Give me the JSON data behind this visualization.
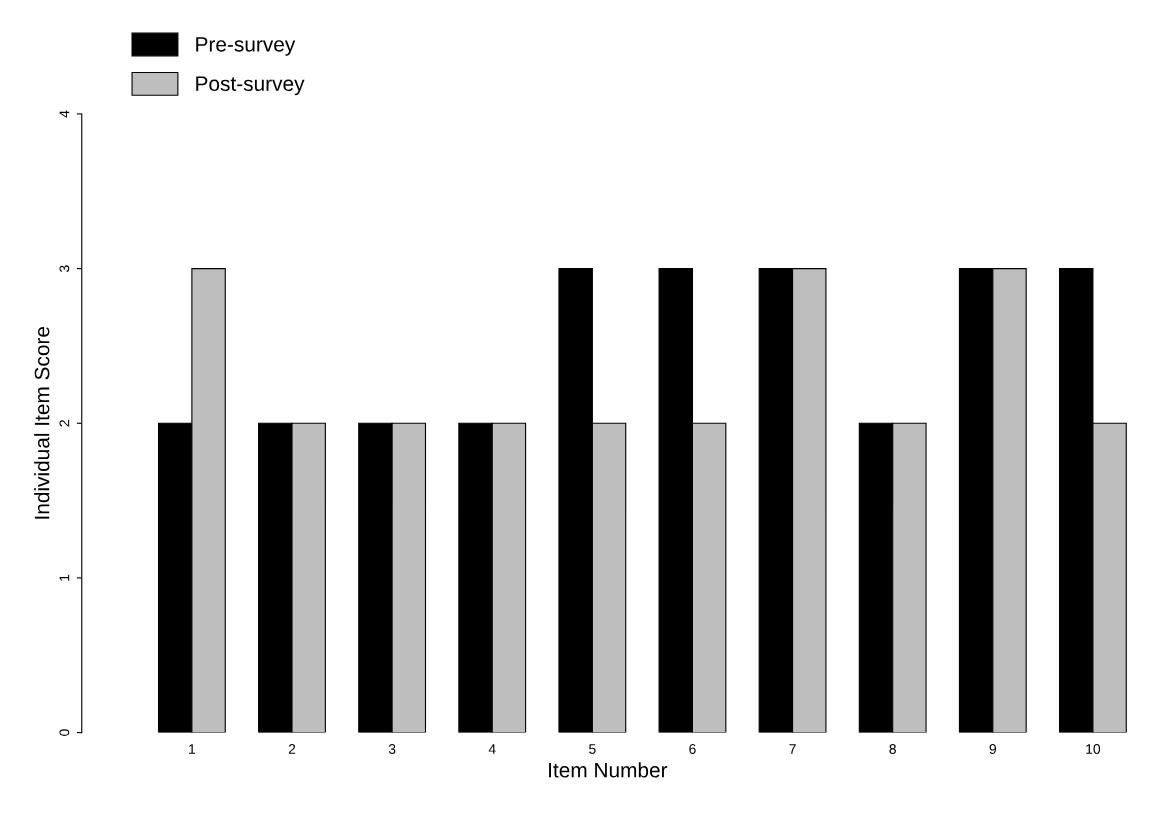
{
  "chart_data": {
    "type": "bar",
    "xlabel": "Item Number",
    "ylabel": "Individual Item Score",
    "categories": [
      "1",
      "2",
      "3",
      "4",
      "5",
      "6",
      "7",
      "8",
      "9",
      "10"
    ],
    "series": [
      {
        "name": "Pre-survey",
        "color": "#000000",
        "values": [
          2,
          2,
          2,
          2,
          3,
          3,
          3,
          2,
          3,
          3
        ]
      },
      {
        "name": "Post-survey",
        "color": "#bebebe",
        "values": [
          3,
          2,
          2,
          2,
          2,
          2,
          3,
          2,
          3,
          2
        ]
      }
    ],
    "ylim": [
      0,
      4
    ],
    "yticks": [
      0,
      1,
      2,
      3,
      4
    ],
    "grid": false,
    "legend": "top left"
  }
}
